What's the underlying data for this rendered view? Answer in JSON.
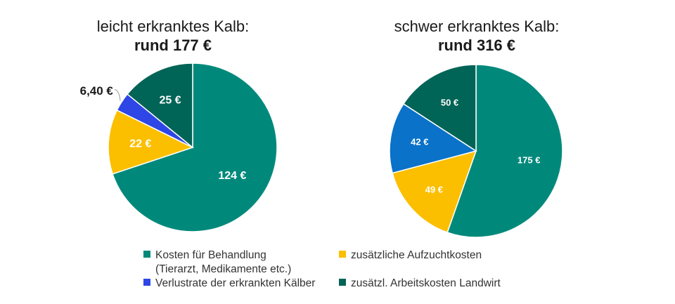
{
  "colors": {
    "behandlung": "#00897b",
    "aufzucht": "#fbbf00",
    "verlust_chart1": "#2e46e6",
    "verlust_chart2": "#0a72c8",
    "arbeit": "#006456"
  },
  "chart_data": [
    {
      "type": "pie",
      "title": "leicht erkranktes Kalb:",
      "subtitle": "rund 177 €",
      "slices": [
        {
          "category": "Kosten für Behandlung",
          "value": 124,
          "label": "124 €",
          "color_key": "behandlung"
        },
        {
          "category": "zusätzliche Aufzuchtkosten",
          "value": 22,
          "label": "22 €",
          "color_key": "aufzucht"
        },
        {
          "category": "Verlustrate der erkrankten Kälber",
          "value": 6.4,
          "label": "6,40 €",
          "color_key": "verlust_chart1"
        },
        {
          "category": "zusätzl. Arbeitskosten Landwirt",
          "value": 25,
          "label": "25 €",
          "color_key": "arbeit"
        }
      ]
    },
    {
      "type": "pie",
      "title": "schwer erkranktes Kalb:",
      "subtitle": "rund 316 €",
      "slices": [
        {
          "category": "Kosten für Behandlung",
          "value": 175,
          "label": "175 €",
          "color_key": "behandlung"
        },
        {
          "category": "zusätzliche Aufzuchtkosten",
          "value": 49,
          "label": "49 €",
          "color_key": "aufzucht"
        },
        {
          "category": "Verlustrate der erkrankten Kälber",
          "value": 42,
          "label": "42 €",
          "color_key": "verlust_chart2"
        },
        {
          "category": "zusätzl. Arbeitskosten Landwirt",
          "value": 50,
          "label": "50 €",
          "color_key": "arbeit"
        }
      ]
    }
  ],
  "legend": {
    "placement": "bottom",
    "items": [
      {
        "label": "Kosten für Behandlung",
        "label_cont": "(Tierarzt, Medikamente etc.)",
        "color_key": "behandlung"
      },
      {
        "label": "zusätzliche Aufzuchtkosten",
        "color_key": "aufzucht"
      },
      {
        "label": "Verlustrate der erkrankten Kälber",
        "color_key": "verlust_chart1"
      },
      {
        "label": "zusätzl. Arbeitskosten Landwirt",
        "color_key": "arbeit"
      }
    ]
  }
}
